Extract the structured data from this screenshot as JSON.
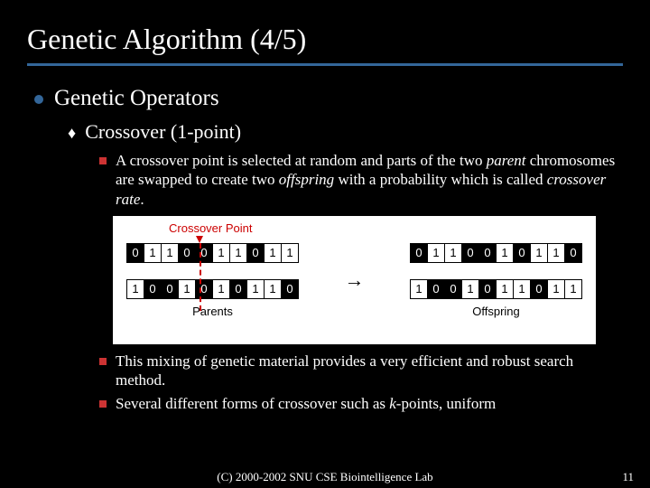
{
  "title": "Genetic Algorithm (4/5)",
  "level1": "Genetic Operators",
  "level2": "Crossover (1-point)",
  "bullet3a_p1": "A crossover point is selected at random and parts of the two ",
  "bullet3a_p2": "parent",
  "bullet3a_p3": " chromosomes are swapped to create two ",
  "bullet3a_p4": "offspring",
  "bullet3a_p5": " with a probability which is called ",
  "bullet3a_p6": "crossover rate",
  "bullet3a_p7": ".",
  "bullet3b": "This mixing of genetic material provides a very efficient and robust search method.",
  "bullet3c_p1": "Several different forms of crossover such as ",
  "bullet3c_p2": "k",
  "bullet3c_p3": "-points, uniform",
  "diagram": {
    "crossover_label": "Crossover Point",
    "parents_label": "Parents",
    "offspring_label": "Offspring",
    "parent1": [
      "0",
      "1",
      "1",
      "0",
      "0",
      "1",
      "1",
      "0",
      "1",
      "1"
    ],
    "parent2": [
      "1",
      "0",
      "0",
      "1",
      "0",
      "1",
      "0",
      "1",
      "1",
      "0"
    ],
    "offspring1": [
      "0",
      "1",
      "1",
      "0",
      "0",
      "1",
      "0",
      "1",
      "1",
      "0"
    ],
    "offspring2": [
      "1",
      "0",
      "0",
      "1",
      "0",
      "1",
      "1",
      "0",
      "1",
      "1"
    ],
    "crossover_point": 4
  },
  "footer": "(C) 2000-2002 SNU CSE Biointelligence Lab",
  "page": "11",
  "colors": {
    "bg": "#000000",
    "accent": "#336699",
    "red": "#cc3333"
  }
}
